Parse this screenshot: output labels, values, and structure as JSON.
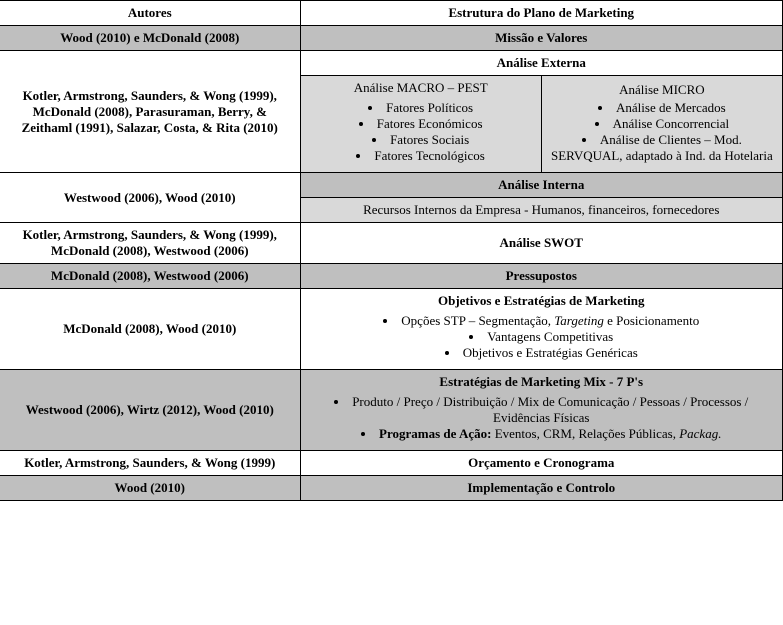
{
  "header": {
    "authors": "Autores",
    "structure": "Estrutura do Plano de Marketing"
  },
  "rows": {
    "mission": {
      "authors": "Wood (2010) e McDonald (2008)",
      "title": "Missão e Valores"
    },
    "external": {
      "authors": "Kotler, Armstrong, Saunders, & Wong (1999), McDonald (2008),   Parasuraman, Berry,  & Zeithaml (1991), Salazar, Costa, & Rita (2010)",
      "title": "Análise Externa",
      "macro": {
        "title": "Análise MACRO – PEST",
        "items": [
          "Fatores Políticos",
          "Fatores Económicos",
          "Fatores Sociais",
          "Fatores Tecnológicos"
        ]
      },
      "micro": {
        "title": "Análise MICRO",
        "items": [
          "Análise de Mercados",
          "Análise Concorrencial",
          "Análise de Clientes – Mod. SERVQUAL, adaptado à Ind. da Hotelaria"
        ]
      }
    },
    "internal": {
      "authors": "Westwood (2006), Wood (2010)",
      "title": "Análise Interna",
      "sub": "Recursos Internos da Empresa - Humanos, financeiros, fornecedores"
    },
    "swot": {
      "authors": "Kotler, Armstrong, Saunders, & Wong (1999), McDonald (2008), Westwood (2006)",
      "title": "Análise SWOT"
    },
    "assumptions": {
      "authors": "McDonald (2008), Westwood (2006)",
      "title": "Pressupostos"
    },
    "objectives": {
      "authors": "McDonald (2008), Wood (2010)",
      "title": "Objetivos e Estratégias de Marketing",
      "li1_pre": "Opções STP – Segmentação, ",
      "li1_it": "Targeting",
      "li1_post": " e Posicionamento",
      "li2": "Vantagens Competitivas",
      "li3": "Objetivos e Estratégias Genéricas"
    },
    "mix": {
      "authors": "Westwood (2006), Wirtz (2012), Wood (2010)",
      "title": "Estratégias de Marketing Mix - 7 P's",
      "li1": "Produto / Preço / Distribuição / Mix de Comunicação / Pessoas / Processos / Evidências Físicas",
      "li2_b": "Programas de Ação:",
      "li2_rest_pre": " Eventos, CRM, Relações Públicas, ",
      "li2_it": "Packag."
    },
    "budget": {
      "authors": "Kotler, Armstrong, Saunders, & Wong (1999)",
      "title": "Orçamento e Cronograma"
    },
    "impl": {
      "authors": "Wood (2010)",
      "title": "Implementação e Controlo"
    }
  }
}
